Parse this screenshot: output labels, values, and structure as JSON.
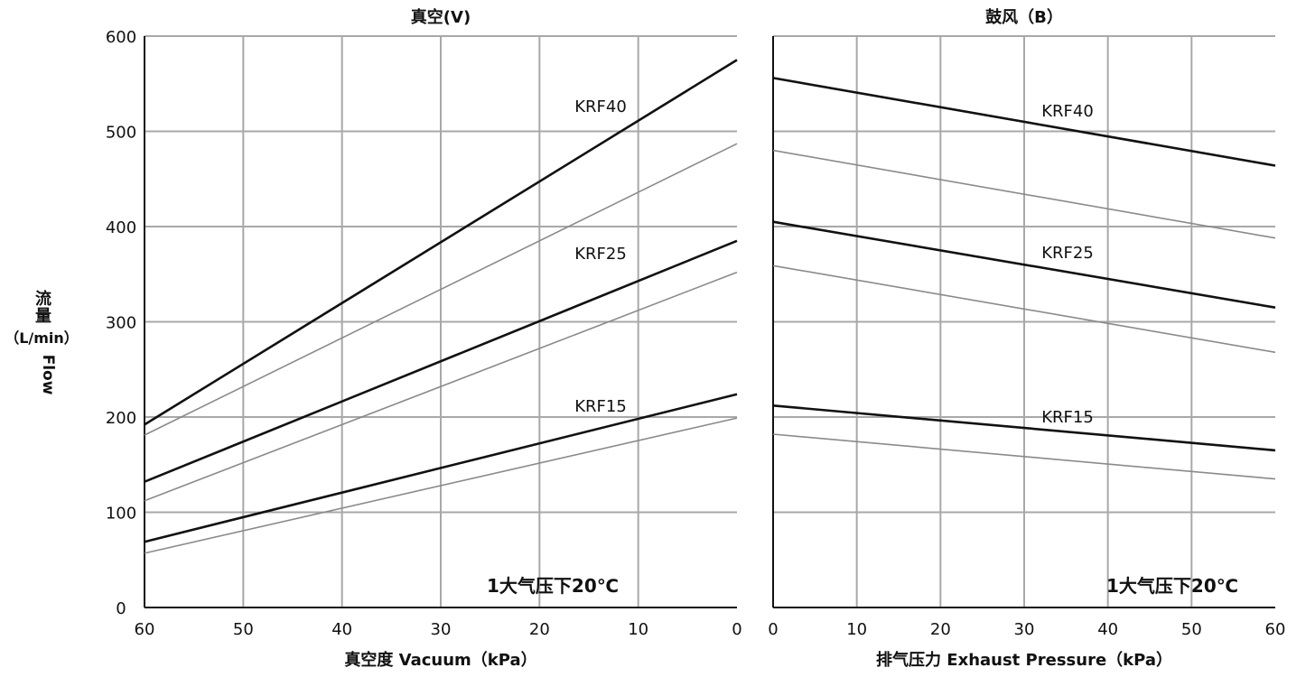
{
  "ylabel_lines": [
    "流",
    "量",
    "（L/min）"
  ],
  "ylabel_en": "Flow",
  "colors": {
    "grid": "#a8a8a8",
    "axis": "#111111",
    "thick": "#111111",
    "thin": "#8a8a8a",
    "background": "#ffffff"
  },
  "chart_data": [
    {
      "type": "line",
      "title": "真空(V)",
      "xlabel": "真空度 Vacuum（kPa）",
      "ylabel": "流量（L/min） Flow",
      "x_ticks": [
        60,
        50,
        40,
        30,
        20,
        10,
        0
      ],
      "x_reversed": true,
      "xlim": [
        60,
        0
      ],
      "y_ticks": [
        0,
        100,
        200,
        300,
        400,
        500,
        600
      ],
      "ylim": [
        0,
        600
      ],
      "grid": true,
      "annotation": "1大气压下20℃",
      "series": [
        {
          "name": "KRF40",
          "weight": "thick",
          "x": [
            60,
            0
          ],
          "y": [
            192,
            575
          ]
        },
        {
          "weight": "thin",
          "x": [
            60,
            0
          ],
          "y": [
            181,
            487
          ]
        },
        {
          "name": "KRF25",
          "weight": "thick",
          "x": [
            60,
            0
          ],
          "y": [
            132,
            385
          ]
        },
        {
          "weight": "thin",
          "x": [
            60,
            0
          ],
          "y": [
            112,
            352
          ]
        },
        {
          "name": "KRF15",
          "weight": "thick",
          "x": [
            60,
            0
          ],
          "y": [
            69,
            224
          ]
        },
        {
          "weight": "thin",
          "x": [
            60,
            0
          ],
          "y": [
            57,
            199
          ]
        }
      ]
    },
    {
      "type": "line",
      "title": "鼓风（B）",
      "xlabel": "排气压力 Exhaust Pressure（kPa）",
      "x_ticks": [
        0,
        10,
        20,
        30,
        40,
        50,
        60
      ],
      "xlim": [
        0,
        60
      ],
      "ylim": [
        0,
        600
      ],
      "grid": true,
      "annotation": "1大气压下20℃",
      "series": [
        {
          "name": "KRF40",
          "weight": "thick",
          "x": [
            0,
            60
          ],
          "y": [
            556,
            464
          ]
        },
        {
          "weight": "thin",
          "x": [
            0,
            60
          ],
          "y": [
            480,
            388
          ]
        },
        {
          "name": "KRF25",
          "weight": "thick",
          "x": [
            0,
            60
          ],
          "y": [
            405,
            315
          ]
        },
        {
          "weight": "thin",
          "x": [
            0,
            60
          ],
          "y": [
            359,
            268
          ]
        },
        {
          "name": "KRF15",
          "weight": "thick",
          "x": [
            0,
            60
          ],
          "y": [
            212,
            165
          ]
        },
        {
          "weight": "thin",
          "x": [
            0,
            60
          ],
          "y": [
            182,
            135
          ]
        }
      ]
    }
  ]
}
